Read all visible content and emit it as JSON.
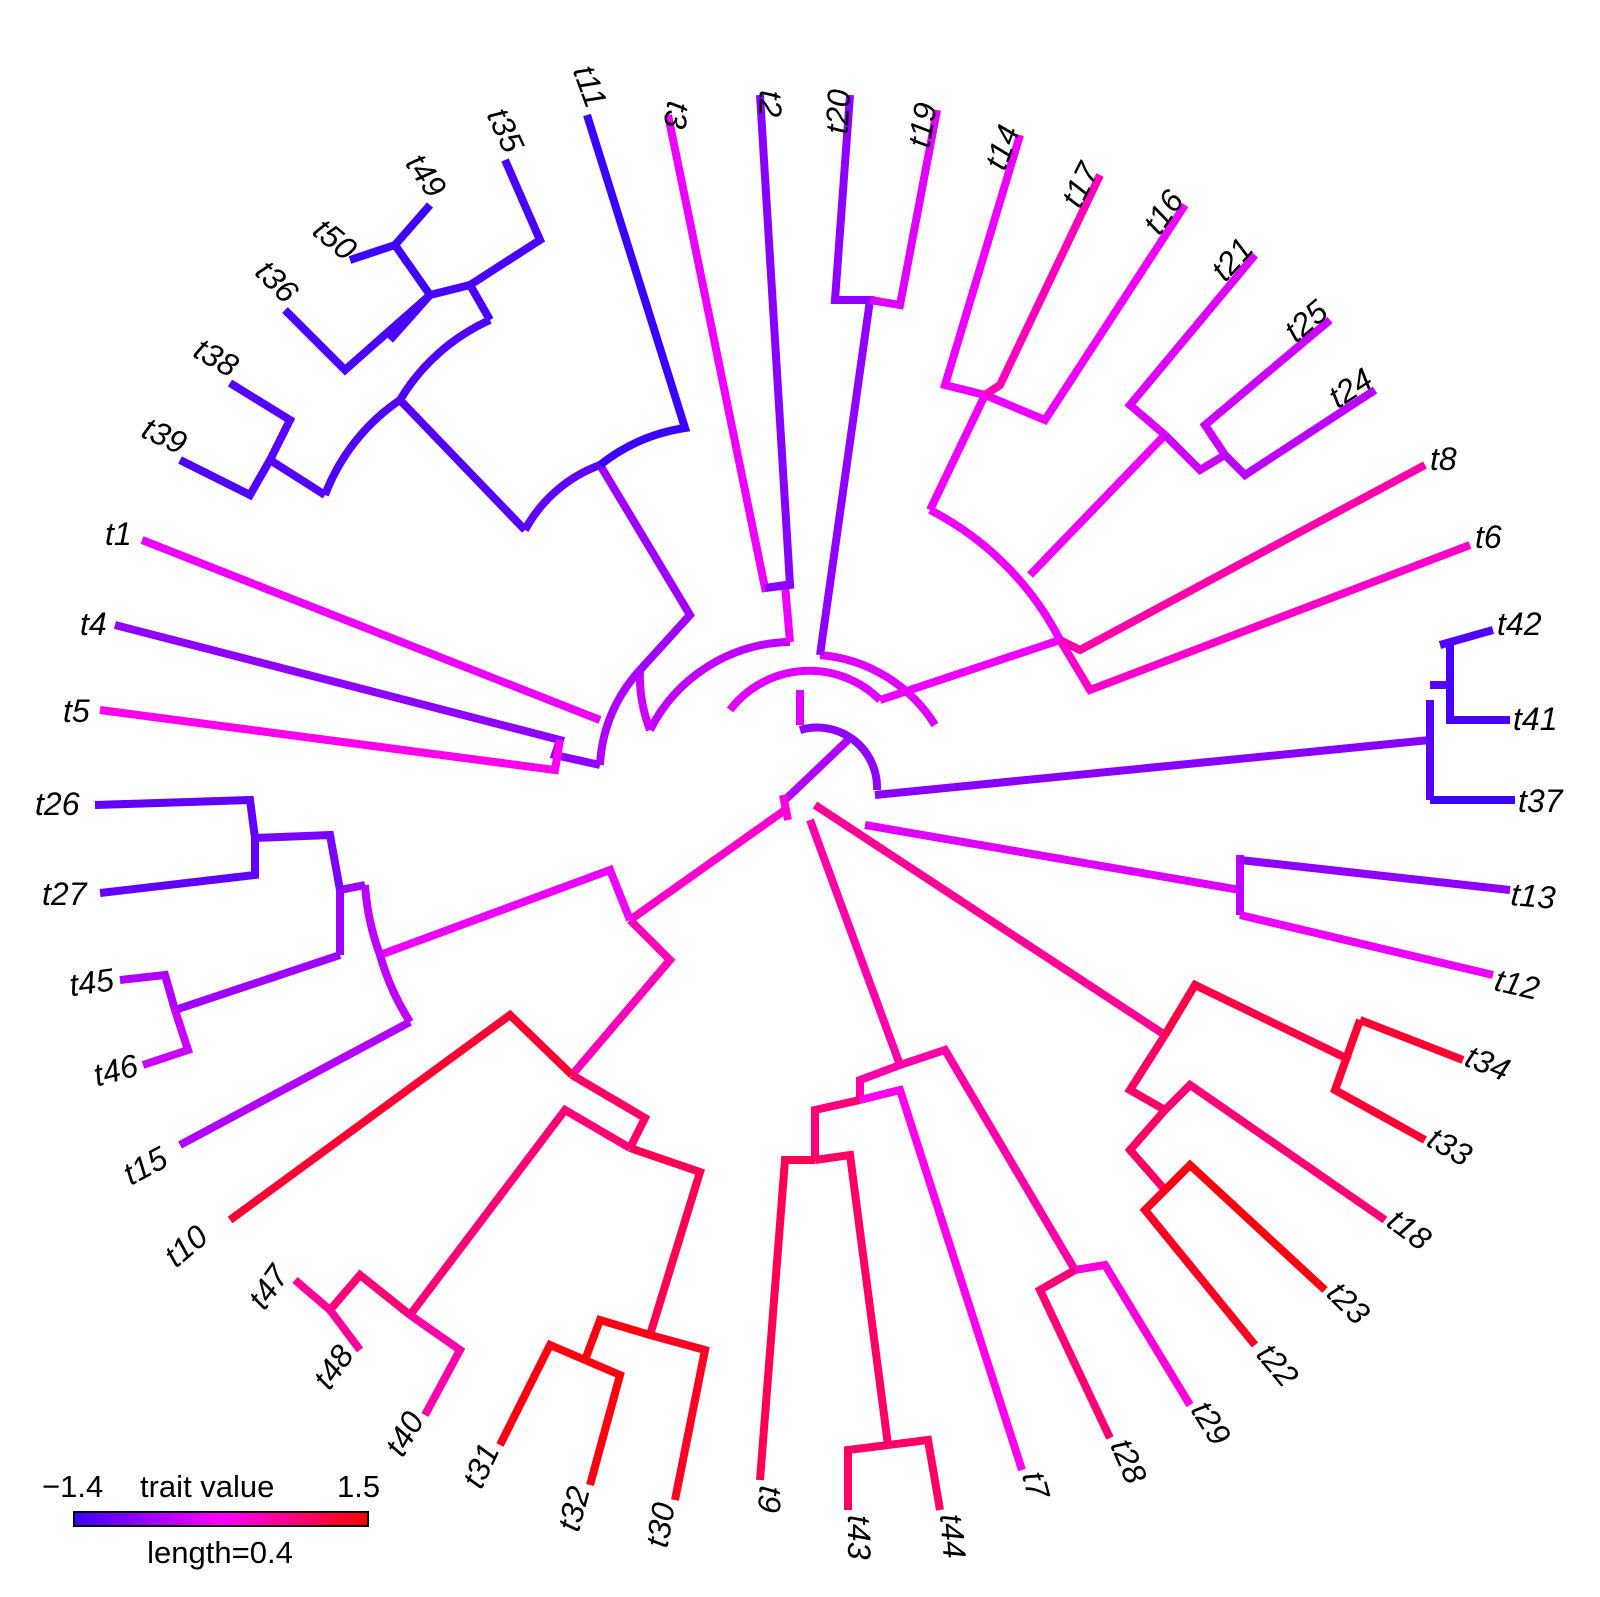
{
  "legend": {
    "min_label": "−1.4",
    "title": "trait value",
    "max_label": "1.5",
    "scale_label": "length=0.4",
    "gradient_colors": [
      "#3b00ff",
      "#ff00ff",
      "#ff0000"
    ]
  },
  "tips": [
    "t1",
    "t2",
    "t3",
    "t4",
    "t5",
    "t6",
    "t7",
    "t8",
    "t9",
    "t10",
    "t11",
    "t12",
    "t13",
    "t14",
    "t15",
    "t16",
    "t17",
    "t18",
    "t19",
    "t20",
    "t21",
    "t22",
    "t23",
    "t24",
    "t25",
    "t26",
    "t27",
    "t28",
    "t29",
    "t30",
    "t31",
    "t32",
    "t33",
    "t34",
    "t35",
    "t36",
    "t37",
    "t38",
    "t39",
    "t40",
    "t41",
    "t42",
    "t43",
    "t44",
    "t45",
    "t46",
    "t47",
    "t48",
    "t49",
    "t50"
  ]
}
